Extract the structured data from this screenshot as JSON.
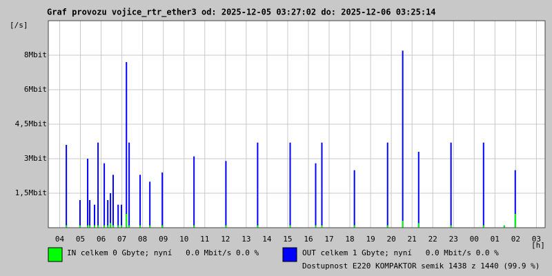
{
  "chart_data": {
    "type": "bar",
    "title": "Graf provozu vojice_rtr_ether3 od: 2025-12-05 03:27:02 do: 2025-12-06 03:25:14",
    "y_label": "[/s]",
    "x_label": "[h]",
    "x": [
      4.32,
      4.98,
      5.35,
      5.45,
      5.68,
      5.85,
      6.15,
      6.32,
      6.45,
      6.58,
      6.82,
      6.98,
      7.22,
      7.35,
      7.88,
      8.35,
      8.95,
      10.48,
      12.02,
      13.55,
      15.12,
      16.35,
      16.65,
      18.22,
      19.82,
      20.55,
      21.32,
      22.88,
      24.45,
      25.45,
      25.98
    ],
    "series": [
      {
        "name": "OUT celkem 1 Gbyte; nyní   0.0 Mbit/s 0.0 %",
        "color": "#0000ff",
        "values": [
          3.6,
          1.2,
          3.0,
          1.2,
          1.0,
          3.7,
          2.8,
          1.2,
          1.5,
          2.3,
          1.0,
          1.0,
          7.2,
          3.7,
          2.3,
          2.0,
          2.4,
          3.1,
          2.9,
          3.7,
          3.7,
          2.8,
          3.7,
          2.5,
          3.7,
          7.7,
          3.3,
          3.7,
          3.7,
          0.1,
          2.5
        ]
      },
      {
        "name": "IN celkem 0 Gbyte; nyní   0.0 Mbit/s 0.0 %",
        "color": "#00ff00",
        "values": [
          0.1,
          0.1,
          0.1,
          0.1,
          0.1,
          0.1,
          0.1,
          0.1,
          0.2,
          0.1,
          0.1,
          0.1,
          0.6,
          0.1,
          0.1,
          0.1,
          0.1,
          0.1,
          0.1,
          0.1,
          0.1,
          0.1,
          0.1,
          0.1,
          0.1,
          0.3,
          0.2,
          0.1,
          0.1,
          0.1,
          0.6
        ]
      }
    ],
    "xlim": [
      3.45,
      27.42
    ],
    "xticks": [
      {
        "value": 4,
        "label": "04"
      },
      {
        "value": 5,
        "label": "05"
      },
      {
        "value": 6,
        "label": "06"
      },
      {
        "value": 7,
        "label": "07"
      },
      {
        "value": 8,
        "label": "08"
      },
      {
        "value": 9,
        "label": "09"
      },
      10,
      11,
      12,
      13,
      14,
      15,
      16,
      17,
      18,
      19,
      20,
      21,
      22,
      23,
      {
        "value": 24,
        "label": "00"
      },
      {
        "value": 25,
        "label": "01"
      },
      {
        "value": 26,
        "label": "02"
      },
      {
        "value": 27,
        "label": "03"
      }
    ],
    "ylim": [
      0,
      9
    ],
    "yticks": [
      {
        "value": 1.5,
        "label": "1,5Mbit"
      },
      {
        "value": 3,
        "label": "3Mbit"
      },
      {
        "value": 4.5,
        "label": "4,5Mbit"
      },
      {
        "value": 6,
        "label": "6Mbit"
      },
      {
        "value": 7.5,
        "label": "8Mbit"
      }
    ],
    "grid": true,
    "footer": "Dostupnost E220 KOMPAKTOR semik 1438 z 1440 (99.9 %)",
    "footer_color": "#e00000"
  }
}
